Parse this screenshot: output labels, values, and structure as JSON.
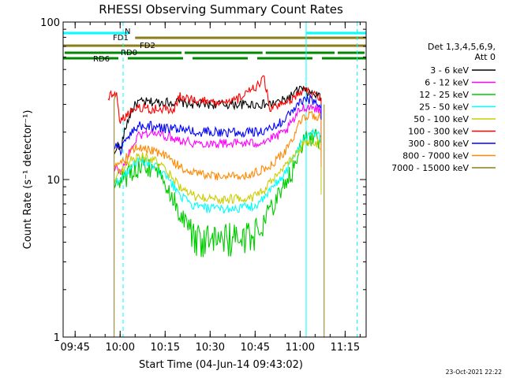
{
  "chart_data": {
    "type": "line",
    "title": "RHESSI Observing Summary Count Rates",
    "xlabel": "Start Time (04-Jun-14 09:43:02)",
    "ylabel": "Count Rate (s⁻¹ detector⁻¹)",
    "y_scale": "log",
    "ylim": [
      1,
      100
    ],
    "xlim": [
      "09:41",
      "11:22"
    ],
    "x_ticks": [
      "09:45",
      "10:00",
      "10:15",
      "10:30",
      "10:45",
      "11:00",
      "11:15"
    ],
    "y_ticks": [
      "1",
      "10",
      "100"
    ],
    "legend_title": [
      "Det 1,3,4,5,6,9,",
      "Att 0"
    ],
    "legend_position": "right",
    "flag_labels": [
      "N",
      "FD1",
      "FD2",
      "RD0",
      "RD6"
    ],
    "footer_date": "23-Oct-2021 22:22",
    "data_window": [
      "09:58",
      "11:08"
    ],
    "series": [
      {
        "name": "3 - 6 keV",
        "color": "#000000",
        "x": [
          "09:58",
          "09:59",
          "10:00",
          "10:02",
          "10:04",
          "10:06",
          "10:10",
          "10:15",
          "10:20",
          "10:25",
          "10:30",
          "10:35",
          "10:40",
          "10:45",
          "10:50",
          "10:55",
          "10:58",
          "11:00",
          "11:02",
          "11:04",
          "11:06",
          "11:07"
        ],
        "y": [
          14,
          17,
          15,
          22,
          28,
          31,
          31,
          31,
          31,
          30,
          30,
          30,
          30,
          30,
          30,
          32,
          35,
          38,
          36,
          35,
          34,
          33
        ]
      },
      {
        "name": "6 - 12 keV",
        "color": "#ff00ff",
        "x": [
          "09:58",
          "09:59",
          "10:00",
          "10:02",
          "10:04",
          "10:06",
          "10:10",
          "10:15",
          "10:20",
          "10:25",
          "10:30",
          "10:35",
          "10:40",
          "10:45",
          "10:50",
          "10:55",
          "10:58",
          "11:00",
          "11:02",
          "11:04",
          "11:06",
          "11:07"
        ],
        "y": [
          11,
          12,
          11,
          13,
          16,
          19,
          20,
          19,
          18,
          17,
          17,
          17,
          17,
          17,
          18,
          20,
          24,
          28,
          29,
          29,
          28,
          27
        ]
      },
      {
        "name": "12 - 25 keV",
        "color": "#00cc00",
        "x": [
          "09:58",
          "09:59",
          "10:00",
          "10:02",
          "10:04",
          "10:06",
          "10:08",
          "10:12",
          "10:15",
          "10:18",
          "10:20",
          "10:23",
          "10:25",
          "10:30",
          "10:35",
          "10:40",
          "10:45",
          "10:48",
          "10:50",
          "10:55",
          "10:58",
          "11:00",
          "11:02",
          "11:04",
          "11:06",
          "11:07"
        ],
        "y": [
          9,
          9,
          9.5,
          10,
          11,
          12,
          12.5,
          11.5,
          9.5,
          7.5,
          6,
          5,
          4.8,
          4.6,
          4.6,
          4.6,
          4.8,
          5.5,
          6.5,
          9,
          12,
          15,
          18,
          19,
          18,
          17
        ]
      },
      {
        "name": "25 - 50 keV",
        "color": "#00ffff",
        "x": [
          "09:58",
          "09:59",
          "10:00",
          "10:02",
          "10:04",
          "10:06",
          "10:08",
          "10:12",
          "10:15",
          "10:18",
          "10:20",
          "10:23",
          "10:25",
          "10:30",
          "10:35",
          "10:40",
          "10:45",
          "10:48",
          "10:50",
          "10:55",
          "10:58",
          "11:00",
          "11:02",
          "11:04",
          "11:06",
          "11:07"
        ],
        "y": [
          9,
          10,
          10,
          11,
          12.5,
          13,
          13,
          12,
          10.5,
          9,
          8,
          7,
          6.8,
          6.5,
          6.5,
          6.6,
          6.8,
          7.5,
          8.5,
          11,
          14,
          17,
          19,
          20,
          19,
          18
        ]
      },
      {
        "name": "50 - 100 keV",
        "color": "#cccc00",
        "x": [
          "09:58",
          "09:59",
          "10:00",
          "10:02",
          "10:04",
          "10:06",
          "10:08",
          "10:12",
          "10:15",
          "10:18",
          "10:20",
          "10:23",
          "10:25",
          "10:30",
          "10:35",
          "10:40",
          "10:45",
          "10:48",
          "10:50",
          "10:55",
          "10:58",
          "11:00",
          "11:02",
          "11:04",
          "11:06",
          "11:07"
        ],
        "y": [
          10,
          11,
          11,
          12.5,
          13.5,
          14,
          14,
          13,
          11.5,
          10,
          9,
          8,
          7.8,
          7.5,
          7.5,
          7.6,
          7.8,
          8.5,
          9.5,
          12,
          14,
          16,
          17,
          17.5,
          17,
          16
        ]
      },
      {
        "name": "100 - 300 keV",
        "color": "#ff0000",
        "x": [
          "09:56",
          "09:58",
          "09:59",
          "10:00",
          "10:02",
          "10:06",
          "10:10",
          "10:15",
          "10:18",
          "10:20",
          "10:25",
          "10:30",
          "10:35",
          "10:40",
          "10:44",
          "10:47",
          "10:48",
          "10:50",
          "10:55",
          "10:58",
          "11:00",
          "11:02",
          "11:04",
          "11:06",
          "11:07"
        ],
        "y": [
          33,
          36,
          35,
          23,
          26,
          29,
          28,
          28,
          28,
          34,
          32,
          31,
          30,
          33,
          37,
          42,
          44,
          28,
          30,
          33,
          36,
          37,
          35,
          34,
          33
        ]
      },
      {
        "name": "300 - 800 keV",
        "color": "#0000ff",
        "x": [
          "09:58",
          "09:59",
          "10:00",
          "10:02",
          "10:04",
          "10:06",
          "10:10",
          "10:15",
          "10:20",
          "10:25",
          "10:30",
          "10:35",
          "10:40",
          "10:45",
          "10:50",
          "10:55",
          "10:58",
          "11:00",
          "11:02",
          "11:04",
          "11:06",
          "11:07"
        ],
        "y": [
          16,
          17,
          15,
          18,
          20,
          22,
          22,
          21,
          21,
          20,
          20,
          20,
          20,
          20,
          21,
          24,
          28,
          31,
          32,
          32,
          31,
          30
        ]
      },
      {
        "name": "800 - 7000 keV",
        "color": "#ff8800",
        "x": [
          "09:58",
          "09:59",
          "10:00",
          "10:02",
          "10:04",
          "10:06",
          "10:10",
          "10:15",
          "10:20",
          "10:25",
          "10:30",
          "10:35",
          "10:40",
          "10:45",
          "10:50",
          "10:55",
          "10:58",
          "11:00",
          "11:02",
          "11:04",
          "11:06",
          "11:07"
        ],
        "y": [
          12,
          13,
          12.5,
          14,
          15.5,
          16,
          15.5,
          14,
          12,
          11,
          10.5,
          10.5,
          10.5,
          11,
          12,
          15,
          19,
          23,
          25,
          26,
          25,
          24
        ]
      },
      {
        "name": "7000 - 15000 keV",
        "color": "#8b7d1a",
        "x": [
          "09:58",
          "10:00",
          "10:10",
          "10:20",
          "10:30",
          "10:40",
          "10:50",
          "11:00",
          "11:07"
        ],
        "y": [
          1,
          1,
          1,
          1,
          1,
          1,
          1,
          1,
          1
        ]
      }
    ],
    "flags": [
      {
        "name": "N",
        "color": "#00ffff",
        "segments": [
          [
            "09:41",
            "10:03"
          ],
          [
            "11:02",
            "11:22"
          ]
        ]
      },
      {
        "name": "FD1",
        "color": "#8b7d1a",
        "segments": [
          [
            "10:05",
            "11:22"
          ]
        ]
      },
      {
        "name": "FD2",
        "color": "#8b7d1a",
        "segments": [
          [
            "09:41",
            "11:22"
          ]
        ]
      },
      {
        "name": "RD0",
        "color": "#008800",
        "segments": [
          [
            "09:41",
            "10:21"
          ],
          [
            "10:21",
            "10:48"
          ],
          [
            "10:48",
            "11:12"
          ],
          [
            "11:12",
            "11:22"
          ]
        ]
      },
      {
        "name": "RD6",
        "color": "#008800",
        "segments": [
          [
            "09:41",
            "11:22"
          ]
        ]
      }
    ],
    "markers": [
      {
        "type": "solid",
        "color": "#00ffff",
        "x": "09:41"
      },
      {
        "type": "dashed",
        "color": "#00ffff",
        "x": "10:01"
      },
      {
        "type": "solid",
        "color": "#00ffff",
        "x": "11:02"
      },
      {
        "type": "dashed",
        "color": "#00ffff",
        "x": "11:19"
      }
    ]
  }
}
